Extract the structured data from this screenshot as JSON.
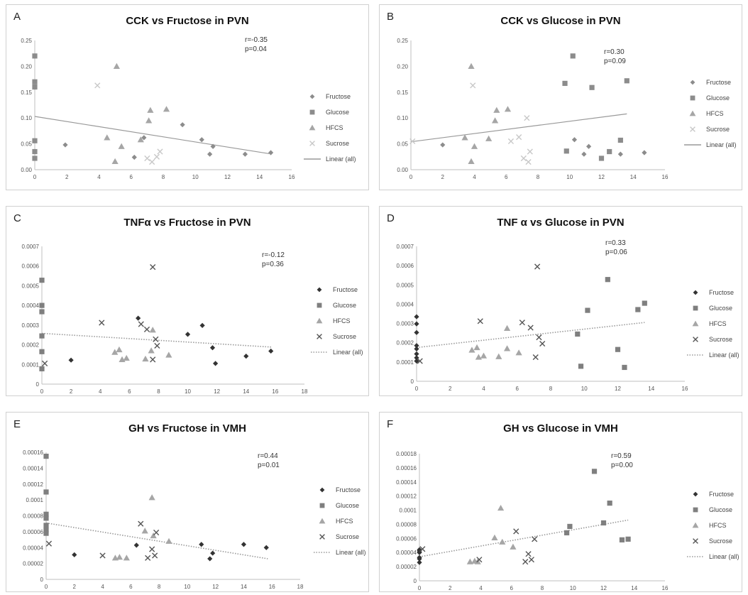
{
  "charts": [
    {
      "id": "A",
      "letter": "A",
      "title": "CCK vs Fructose in PVN",
      "r": "r=-0.35",
      "p": "p=0.04",
      "yticks": [
        "0.00",
        "0.05",
        "0.10",
        "0.15",
        "0.20",
        "0.25"
      ],
      "xticks": [
        "0",
        "2",
        "4",
        "6",
        "8",
        "10",
        "12",
        "14",
        "16"
      ],
      "legend": [
        "Fructose",
        "Glucose",
        "HFCS",
        "Sucrose",
        "Linear (all)"
      ]
    },
    {
      "id": "B",
      "letter": "B",
      "title": "CCK vs Glucose in PVN",
      "r": "r=0.30",
      "p": "p=0.09",
      "yticks": [
        "0.00",
        "0.05",
        "0.10",
        "0.15",
        "0.20",
        "0.25"
      ],
      "xticks": [
        "0",
        "2",
        "4",
        "6",
        "8",
        "10",
        "12",
        "14",
        "16"
      ],
      "legend": [
        "Fructose",
        "Glucose",
        "HFCS",
        "Sucrose",
        "Linear (all)"
      ]
    },
    {
      "id": "C",
      "letter": "C",
      "title": "TNFα vs Fructose in PVN",
      "r": "r=-0.12",
      "p": "p=0.36",
      "yticks": [
        "0",
        "0.0001",
        "0.0002",
        "0.0003",
        "0.0004",
        "0.0005",
        "0.0006",
        "0.0007"
      ],
      "xticks": [
        "0",
        "2",
        "4",
        "6",
        "8",
        "10",
        "12",
        "14",
        "16",
        "18"
      ],
      "legend": [
        "Fructose",
        "Glucose",
        "HFCS",
        "Sucrose",
        "Linear (all)"
      ]
    },
    {
      "id": "D",
      "letter": "D",
      "title": "TNF α vs Glucose in PVN",
      "r": "r=0.33",
      "p": "p=0.06",
      "yticks": [
        "0",
        "0.0001",
        "0.0002",
        "0.0003",
        "0.0004",
        "0.0005",
        "0.0006",
        "0.0007"
      ],
      "xticks": [
        "0",
        "2",
        "4",
        "6",
        "8",
        "10",
        "12",
        "14",
        "16"
      ],
      "legend": [
        "Fructose",
        "Glucose",
        "HFCS",
        "Sucrose",
        "Linear (all)"
      ]
    },
    {
      "id": "E",
      "letter": "E",
      "title": "GH vs Fructose in VMH",
      "r": "r=0.44",
      "p": "p=0.01",
      "yticks": [
        "0",
        "0.00002",
        "0.00004",
        "0.00006",
        "0.00008",
        "0.0001",
        "0.00012",
        "0.00014",
        "0.00016"
      ],
      "xticks": [
        "0",
        "2",
        "4",
        "6",
        "8",
        "10",
        "12",
        "14",
        "16",
        "18"
      ],
      "legend": [
        "Fructose",
        "Glucose",
        "HFCS",
        "Sucrose",
        "Linear (all)"
      ]
    },
    {
      "id": "F",
      "letter": "F",
      "title": "GH vs Glucose in VMH",
      "r": "r=0.59",
      "p": "p=0.00",
      "yticks": [
        "0",
        "0.00002",
        "0.00004",
        "0.00006",
        "0.00008",
        "0.0001",
        "0.00012",
        "0.00014",
        "0.00016",
        "0.00018"
      ],
      "xticks": [
        "0",
        "2",
        "4",
        "6",
        "8",
        "10",
        "12",
        "14",
        "16"
      ],
      "legend": [
        "Fructose",
        "Glucose",
        "HFCS",
        "Sucrose",
        "Linear (all)"
      ]
    }
  ],
  "chart_data": [
    {
      "panel": "A",
      "type": "scatter",
      "title": "CCK vs Fructose in PVN",
      "xlim": [
        0,
        16
      ],
      "ylim": [
        0,
        0.25
      ],
      "grid": false,
      "legend_position": "right",
      "trend": {
        "style": "solid",
        "from": [
          0,
          0.103
        ],
        "to": [
          14.6,
          0.031
        ]
      },
      "series": [
        {
          "name": "Fructose",
          "marker": "diamond",
          "color": "#8c8c8c",
          "x": [
            1.9,
            6.2,
            6.8,
            9.2,
            10.4,
            10.9,
            11.1,
            13.1,
            14.7
          ],
          "y": [
            0.048,
            0.024,
            0.062,
            0.087,
            0.058,
            0.03,
            0.045,
            0.03,
            0.033
          ]
        },
        {
          "name": "Glucose",
          "marker": "square",
          "color": "#8c8c8c",
          "x": [
            0,
            0,
            0,
            0,
            0,
            0
          ],
          "y": [
            0.22,
            0.17,
            0.16,
            0.056,
            0.035,
            0.022
          ]
        },
        {
          "name": "HFCS",
          "marker": "triangle",
          "color": "#a6a6a6",
          "x": [
            4.5,
            5.0,
            5.4,
            6.6,
            7.1,
            7.2,
            8.2,
            5.1
          ],
          "y": [
            0.062,
            0.016,
            0.045,
            0.058,
            0.095,
            0.115,
            0.117,
            0.2
          ]
        },
        {
          "name": "Sucrose",
          "marker": "x",
          "color": "#c8c8c8",
          "x": [
            3.9,
            7.0,
            7.3,
            7.6,
            7.8
          ],
          "y": [
            0.163,
            0.022,
            0.015,
            0.025,
            0.035
          ]
        }
      ]
    },
    {
      "panel": "B",
      "type": "scatter",
      "title": "CCK vs Glucose in PVN",
      "xlim": [
        0,
        16
      ],
      "ylim": [
        0,
        0.25
      ],
      "grid": false,
      "legend_position": "right",
      "trend": {
        "style": "solid",
        "from": [
          0,
          0.054
        ],
        "to": [
          13.6,
          0.108
        ]
      },
      "series": [
        {
          "name": "Fructose",
          "marker": "diamond",
          "color": "#8c8c8c",
          "x": [
            2.0,
            10.3,
            10.9,
            11.2,
            13.2,
            14.7
          ],
          "y": [
            0.048,
            0.058,
            0.03,
            0.045,
            0.03,
            0.033
          ]
        },
        {
          "name": "Glucose",
          "marker": "square",
          "color": "#8c8c8c",
          "x": [
            9.7,
            10.2,
            11.4,
            13.6,
            9.8,
            12.0,
            12.5,
            13.2
          ],
          "y": [
            0.167,
            0.22,
            0.159,
            0.172,
            0.036,
            0.022,
            0.035,
            0.057
          ]
        },
        {
          "name": "HFCS",
          "marker": "triangle",
          "color": "#a6a6a6",
          "x": [
            3.4,
            3.8,
            4.0,
            4.9,
            5.3,
            5.4,
            6.1,
            3.8
          ],
          "y": [
            0.062,
            0.016,
            0.045,
            0.06,
            0.095,
            0.115,
            0.117,
            0.2
          ]
        },
        {
          "name": "Sucrose",
          "marker": "x",
          "color": "#c8c8c8",
          "x": [
            0.1,
            3.9,
            6.3,
            6.8,
            7.1,
            7.3,
            7.4,
            7.5
          ],
          "y": [
            0.055,
            0.163,
            0.055,
            0.063,
            0.022,
            0.1,
            0.015,
            0.035
          ]
        }
      ]
    },
    {
      "panel": "C",
      "type": "scatter",
      "title": "TNFα vs Fructose in PVN",
      "xlim": [
        0,
        18
      ],
      "ylim": [
        0,
        0.0007
      ],
      "grid": false,
      "legend_position": "right",
      "trend": {
        "style": "dotted",
        "from": [
          0,
          0.000258
        ],
        "to": [
          15.8,
          0.000188
        ]
      },
      "series": [
        {
          "name": "Fructose",
          "marker": "diamond",
          "color": "#333333",
          "x": [
            2.0,
            6.6,
            10.0,
            11.0,
            11.7,
            11.9,
            14.0,
            15.7
          ],
          "y": [
            0.000122,
            0.000335,
            0.000253,
            0.000298,
            0.000185,
            0.000105,
            0.000142,
            0.000168
          ]
        },
        {
          "name": "Glucose",
          "marker": "square",
          "color": "#7f7f7f",
          "x": [
            0,
            0,
            0,
            0,
            0,
            0
          ],
          "y": [
            0.000528,
            0.0004,
            0.000368,
            0.000245,
            0.000165,
            7.8e-05
          ]
        },
        {
          "name": "HFCS",
          "marker": "triangle",
          "color": "#a6a6a6",
          "x": [
            5.0,
            5.3,
            5.5,
            5.8,
            7.1,
            7.5,
            7.6,
            8.7
          ],
          "y": [
            0.000162,
            0.000175,
            0.000125,
            0.000132,
            0.000128,
            0.00017,
            0.000275,
            0.000148
          ]
        },
        {
          "name": "Sucrose",
          "marker": "x",
          "color": "#555555",
          "x": [
            0.2,
            4.1,
            6.8,
            7.2,
            7.6,
            7.8,
            7.9,
            7.6
          ],
          "y": [
            0.000105,
            0.000312,
            0.000305,
            0.000278,
            0.000125,
            0.000228,
            0.000195,
            0.000595
          ]
        }
      ]
    },
    {
      "panel": "D",
      "type": "scatter",
      "title": "TNF α vs Glucose in PVN",
      "xlim": [
        0,
        16
      ],
      "ylim": [
        0,
        0.0007
      ],
      "grid": false,
      "legend_position": "right",
      "trend": {
        "style": "dotted",
        "from": [
          0,
          0.000175
        ],
        "to": [
          13.6,
          0.000305
        ]
      },
      "series": [
        {
          "name": "Fructose",
          "marker": "diamond",
          "color": "#333333",
          "x": [
            0,
            0,
            0,
            0,
            0,
            0,
            0,
            0
          ],
          "y": [
            0.000335,
            0.000298,
            0.000253,
            0.000185,
            0.000168,
            0.000142,
            0.000122,
            0.000105
          ]
        },
        {
          "name": "Glucose",
          "marker": "square",
          "color": "#7f7f7f",
          "x": [
            9.6,
            9.8,
            10.2,
            11.4,
            12.0,
            12.4,
            13.2,
            13.6
          ],
          "y": [
            0.000245,
            7.8e-05,
            0.000368,
            0.000528,
            0.000165,
            7.2e-05,
            0.000372,
            0.000405
          ]
        },
        {
          "name": "HFCS",
          "marker": "triangle",
          "color": "#a6a6a6",
          "x": [
            3.3,
            3.6,
            3.7,
            4.0,
            4.9,
            5.4,
            5.4,
            6.1
          ],
          "y": [
            0.000162,
            0.000175,
            0.000125,
            0.000132,
            0.000128,
            0.00017,
            0.000275,
            0.000148
          ]
        },
        {
          "name": "Sucrose",
          "marker": "x",
          "color": "#555555",
          "x": [
            0.2,
            3.8,
            6.3,
            6.8,
            7.1,
            7.2,
            7.3,
            7.5
          ],
          "y": [
            0.000105,
            0.000312,
            0.000305,
            0.000278,
            0.000125,
            0.000595,
            0.000228,
            0.000195
          ]
        }
      ]
    },
    {
      "panel": "E",
      "type": "scatter",
      "title": "GH vs Fructose in VMH",
      "xlim": [
        0,
        18
      ],
      "ylim": [
        0,
        0.00016
      ],
      "grid": false,
      "legend_position": "right",
      "trend": {
        "style": "dotted",
        "from": [
          0,
          7.1e-05
        ],
        "to": [
          15.7,
          2.6e-05
        ]
      },
      "series": [
        {
          "name": "Fructose",
          "marker": "diamond",
          "color": "#333333",
          "x": [
            2.0,
            6.4,
            11.0,
            11.6,
            11.8,
            14.0,
            15.6
          ],
          "y": [
            3.1e-05,
            4.3e-05,
            4.4e-05,
            2.6e-05,
            3.3e-05,
            4.4e-05,
            4e-05
          ]
        },
        {
          "name": "Glucose",
          "marker": "square",
          "color": "#7f7f7f",
          "x": [
            0,
            0,
            0,
            0,
            0,
            0,
            0
          ],
          "y": [
            0.000155,
            0.00011,
            8.2e-05,
            7.7e-05,
            6.8e-05,
            6.2e-05,
            5.8e-05
          ]
        },
        {
          "name": "HFCS",
          "marker": "triangle",
          "color": "#a6a6a6",
          "x": [
            4.9,
            5.2,
            5.7,
            7.0,
            7.5,
            7.6,
            8.7
          ],
          "y": [
            2.7e-05,
            2.8e-05,
            2.7e-05,
            6.1e-05,
            0.000103,
            5.5e-05,
            4.8e-05
          ]
        },
        {
          "name": "Sucrose",
          "marker": "x",
          "color": "#555555",
          "x": [
            0.2,
            4.0,
            6.7,
            7.2,
            7.5,
            7.7,
            7.8
          ],
          "y": [
            4.5e-05,
            3e-05,
            7e-05,
            2.7e-05,
            3.8e-05,
            3e-05,
            5.9e-05
          ]
        }
      ]
    },
    {
      "panel": "F",
      "type": "scatter",
      "title": "GH vs Glucose in VMH",
      "xlim": [
        0,
        16
      ],
      "ylim": [
        0,
        0.00018
      ],
      "grid": false,
      "legend_position": "right",
      "trend": {
        "style": "dotted",
        "from": [
          0,
          3.4e-05
        ],
        "to": [
          13.6,
          8.6e-05
        ]
      },
      "series": [
        {
          "name": "Fructose",
          "marker": "diamond",
          "color": "#333333",
          "x": [
            0,
            0,
            0,
            0,
            0,
            0,
            0
          ],
          "y": [
            4.4e-05,
            4.3e-05,
            4.1e-05,
            4e-05,
            3.3e-05,
            3.1e-05,
            2.6e-05
          ]
        },
        {
          "name": "Glucose",
          "marker": "square",
          "color": "#7f7f7f",
          "x": [
            9.6,
            9.8,
            11.4,
            12.0,
            12.4,
            13.2,
            13.6
          ],
          "y": [
            6.8e-05,
            7.7e-05,
            0.000155,
            8.2e-05,
            0.00011,
            5.8e-05,
            5.9e-05
          ]
        },
        {
          "name": "HFCS",
          "marker": "triangle",
          "color": "#a6a6a6",
          "x": [
            3.3,
            3.6,
            3.8,
            4.9,
            5.3,
            5.4,
            6.1
          ],
          "y": [
            2.7e-05,
            2.8e-05,
            2.7e-05,
            6.1e-05,
            0.000103,
            5.5e-05,
            4.8e-05
          ]
        },
        {
          "name": "Sucrose",
          "marker": "x",
          "color": "#555555",
          "x": [
            0.2,
            3.9,
            6.3,
            6.9,
            7.1,
            7.3,
            7.5
          ],
          "y": [
            4.5e-05,
            3e-05,
            7e-05,
            2.7e-05,
            3.8e-05,
            3e-05,
            5.9e-05
          ]
        }
      ]
    }
  ]
}
